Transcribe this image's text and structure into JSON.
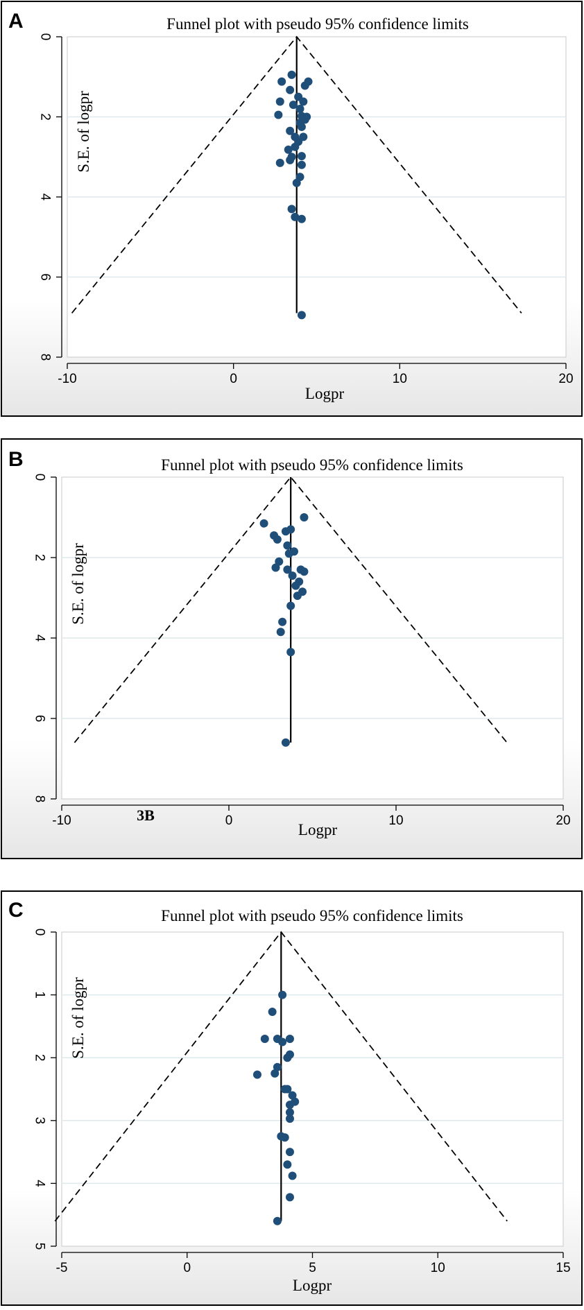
{
  "chart_data": [
    {
      "panel": "A",
      "type": "scatter",
      "subtype": "funnel",
      "title": "Funnel plot with pseudo 95% confidence limits",
      "xlabel": "Logpr",
      "ylabel": "S.E. of logpr",
      "xlim": [
        -10,
        20
      ],
      "ylim": [
        0,
        8
      ],
      "yaxis_reversed": true,
      "xticks": [
        -10,
        0,
        10,
        20
      ],
      "yticks": [
        0,
        2,
        4,
        6,
        8
      ],
      "grid": "horizontal",
      "pooled_estimate": 3.8,
      "limit_se_max": 6.9,
      "points": [
        {
          "x": 3.5,
          "y": 0.95
        },
        {
          "x": 2.9,
          "y": 1.12
        },
        {
          "x": 4.5,
          "y": 1.12
        },
        {
          "x": 4.3,
          "y": 1.22
        },
        {
          "x": 3.4,
          "y": 1.33
        },
        {
          "x": 3.9,
          "y": 1.5
        },
        {
          "x": 2.8,
          "y": 1.62
        },
        {
          "x": 4.2,
          "y": 1.62
        },
        {
          "x": 3.6,
          "y": 1.7
        },
        {
          "x": 4.0,
          "y": 1.8
        },
        {
          "x": 2.7,
          "y": 1.95
        },
        {
          "x": 4.1,
          "y": 1.98
        },
        {
          "x": 4.4,
          "y": 2.0
        },
        {
          "x": 4.3,
          "y": 2.07
        },
        {
          "x": 4.0,
          "y": 2.15
        },
        {
          "x": 4.1,
          "y": 2.25
        },
        {
          "x": 3.4,
          "y": 2.35
        },
        {
          "x": 3.7,
          "y": 2.5
        },
        {
          "x": 4.2,
          "y": 2.5
        },
        {
          "x": 3.9,
          "y": 2.62
        },
        {
          "x": 3.7,
          "y": 2.75
        },
        {
          "x": 3.3,
          "y": 2.82
        },
        {
          "x": 4.1,
          "y": 2.98
        },
        {
          "x": 3.5,
          "y": 3.0
        },
        {
          "x": 3.4,
          "y": 3.08
        },
        {
          "x": 2.8,
          "y": 3.15
        },
        {
          "x": 4.1,
          "y": 3.2
        },
        {
          "x": 4.0,
          "y": 3.5
        },
        {
          "x": 3.8,
          "y": 3.65
        },
        {
          "x": 3.5,
          "y": 4.3
        },
        {
          "x": 3.7,
          "y": 4.5
        },
        {
          "x": 4.1,
          "y": 4.55
        },
        {
          "x": 4.1,
          "y": 6.95
        }
      ]
    },
    {
      "panel": "B",
      "type": "scatter",
      "subtype": "funnel",
      "title": "Funnel plot with pseudo 95% confidence limits",
      "xlabel": "Logpr",
      "ylabel": "S.E. of logpr",
      "annotation": "3B",
      "xlim": [
        -10,
        20
      ],
      "ylim": [
        0,
        8
      ],
      "yaxis_reversed": true,
      "xticks": [
        -10,
        0,
        10,
        20
      ],
      "yticks": [
        0,
        2,
        4,
        6,
        8
      ],
      "grid": "horizontal",
      "pooled_estimate": 3.7,
      "limit_se_max": 6.6,
      "points": [
        {
          "x": 4.5,
          "y": 1.0
        },
        {
          "x": 2.1,
          "y": 1.15
        },
        {
          "x": 3.4,
          "y": 1.35
        },
        {
          "x": 3.7,
          "y": 1.3
        },
        {
          "x": 2.7,
          "y": 1.45
        },
        {
          "x": 2.9,
          "y": 1.55
        },
        {
          "x": 3.5,
          "y": 1.7
        },
        {
          "x": 3.9,
          "y": 1.85
        },
        {
          "x": 3.6,
          "y": 1.9
        },
        {
          "x": 3.0,
          "y": 2.1
        },
        {
          "x": 2.8,
          "y": 2.25
        },
        {
          "x": 3.5,
          "y": 2.3
        },
        {
          "x": 4.3,
          "y": 2.3
        },
        {
          "x": 4.5,
          "y": 2.35
        },
        {
          "x": 3.8,
          "y": 2.45
        },
        {
          "x": 4.2,
          "y": 2.6
        },
        {
          "x": 4.0,
          "y": 2.7
        },
        {
          "x": 4.4,
          "y": 2.85
        },
        {
          "x": 4.1,
          "y": 2.95
        },
        {
          "x": 3.7,
          "y": 3.2
        },
        {
          "x": 3.2,
          "y": 3.6
        },
        {
          "x": 3.1,
          "y": 3.85
        },
        {
          "x": 3.7,
          "y": 4.35
        },
        {
          "x": 3.4,
          "y": 6.6
        }
      ]
    },
    {
      "panel": "C",
      "type": "scatter",
      "subtype": "funnel",
      "title": "Funnel plot with pseudo 95% confidence limits",
      "xlabel": "Logpr",
      "ylabel": "S.E. of logpr",
      "xlim": [
        -5,
        15
      ],
      "ylim": [
        0,
        5
      ],
      "yaxis_reversed": true,
      "xticks": [
        -5,
        0,
        5,
        10,
        15
      ],
      "yticks": [
        0,
        1,
        2,
        3,
        4,
        5
      ],
      "grid": "horizontal",
      "pooled_estimate": 3.75,
      "limit_se_max": 4.6,
      "points": [
        {
          "x": 3.8,
          "y": 1.0
        },
        {
          "x": 3.4,
          "y": 1.27
        },
        {
          "x": 3.1,
          "y": 1.7
        },
        {
          "x": 3.6,
          "y": 1.7
        },
        {
          "x": 4.1,
          "y": 1.7
        },
        {
          "x": 3.8,
          "y": 1.75
        },
        {
          "x": 4.1,
          "y": 1.95
        },
        {
          "x": 4.0,
          "y": 2.0
        },
        {
          "x": 3.6,
          "y": 2.15
        },
        {
          "x": 3.5,
          "y": 2.25
        },
        {
          "x": 2.8,
          "y": 2.27
        },
        {
          "x": 3.9,
          "y": 2.5
        },
        {
          "x": 4.0,
          "y": 2.5
        },
        {
          "x": 4.2,
          "y": 2.6
        },
        {
          "x": 4.3,
          "y": 2.7
        },
        {
          "x": 4.1,
          "y": 2.75
        },
        {
          "x": 4.1,
          "y": 2.87
        },
        {
          "x": 4.1,
          "y": 2.97
        },
        {
          "x": 3.75,
          "y": 3.25
        },
        {
          "x": 3.9,
          "y": 3.27
        },
        {
          "x": 4.1,
          "y": 3.5
        },
        {
          "x": 4.0,
          "y": 3.7
        },
        {
          "x": 4.2,
          "y": 3.88
        },
        {
          "x": 4.1,
          "y": 4.22
        },
        {
          "x": 3.6,
          "y": 4.6
        }
      ]
    }
  ],
  "colors": {
    "marker": "#1f4e79",
    "line": "#000000",
    "grid": "#dde9ec",
    "frame_bottom": "#e6e6e6",
    "plot_border": "#c8c8c8"
  }
}
